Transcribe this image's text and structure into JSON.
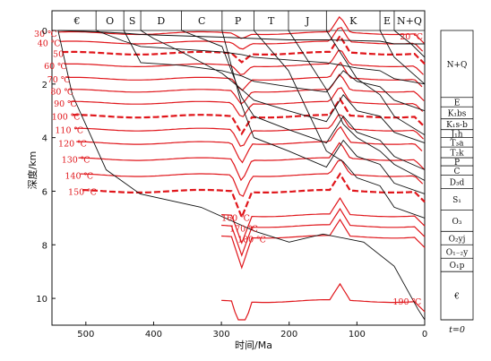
{
  "chart_data": {
    "type": "line",
    "title": "",
    "xlabel": "时间/Ma",
    "ylabel": "深度/km",
    "xlim": [
      550,
      0
    ],
    "ylim": [
      0,
      11
    ],
    "x_ticks": [
      500,
      400,
      300,
      200,
      100,
      0
    ],
    "y_ticks": [
      0,
      2,
      4,
      6,
      8,
      10
    ],
    "periods": [
      {
        "label": "€",
        "start": 541,
        "end": 485
      },
      {
        "label": "O",
        "start": 485,
        "end": 444
      },
      {
        "label": "S",
        "start": 444,
        "end": 419
      },
      {
        "label": "D",
        "start": 419,
        "end": 359
      },
      {
        "label": "C",
        "start": 359,
        "end": 299
      },
      {
        "label": "P",
        "start": 299,
        "end": 252
      },
      {
        "label": "T",
        "start": 252,
        "end": 201
      },
      {
        "label": "J",
        "start": 201,
        "end": 145
      },
      {
        "label": "K",
        "start": 145,
        "end": 66
      },
      {
        "label": "E",
        "start": 66,
        "end": 45
      },
      {
        "label": "N+Q",
        "start": 45,
        "end": 0
      }
    ],
    "isotherms": [
      {
        "label": "30 ℃",
        "temp": 30,
        "depth_at_start": 0.1
      },
      {
        "label": "40 ℃",
        "temp": 40,
        "depth_at_start": 0.45
      },
      {
        "label": "50",
        "temp": 50,
        "depth_at_start": 0.85
      },
      {
        "label": "60 ℃",
        "temp": 60,
        "depth_at_start": 1.3
      },
      {
        "label": "70 ℃",
        "temp": 70,
        "depth_at_start": 1.8
      },
      {
        "label": "80 ℃",
        "temp": 80,
        "depth_at_start": 2.25
      },
      {
        "label": "90 ℃",
        "temp": 90,
        "depth_at_start": 2.7
      },
      {
        "label": "100 ℃",
        "temp": 100,
        "depth_at_start": 3.2
      },
      {
        "label": "110 ℃",
        "temp": 110,
        "depth_at_start": 3.7
      },
      {
        "label": "120 ℃",
        "temp": 120,
        "depth_at_start": 4.2
      },
      {
        "label": "130 ℃",
        "temp": 130,
        "depth_at_start": 4.8
      },
      {
        "label": "140 ℃",
        "temp": 140,
        "depth_at_start": 5.4
      },
      {
        "label": "150 ℃",
        "temp": 150,
        "depth_at_start": 6.0
      },
      {
        "label": "160 ℃",
        "temp": 160,
        "depth_at_start": 6.9
      },
      {
        "label": "170 ℃",
        "temp": 170,
        "depth_at_start": 7.3
      },
      {
        "label": "180 ℃",
        "temp": 180,
        "depth_at_start": 7.7
      },
      {
        "label": "190 ℃",
        "temp": 190,
        "depth_at_start": 10.1
      },
      {
        "label": "20 ℃",
        "temp": 20,
        "depth_at_start": 0.2
      }
    ],
    "dashed_isotherms": [
      50,
      100,
      150
    ],
    "burial_curves": [
      [
        [
          541,
          0
        ],
        [
          485,
          0.05
        ],
        [
          444,
          0.1
        ],
        [
          419,
          0.15
        ],
        [
          359,
          0.2
        ],
        [
          299,
          0.25
        ],
        [
          252,
          0.3
        ],
        [
          201,
          0.35
        ],
        [
          145,
          0.35
        ],
        [
          66,
          0.4
        ],
        [
          45,
          0.5
        ],
        [
          0,
          0.5
        ]
      ],
      [
        [
          485,
          0
        ],
        [
          444,
          0.4
        ],
        [
          419,
          0.6
        ],
        [
          359,
          0.7
        ],
        [
          299,
          0.8
        ],
        [
          270,
          0.9
        ],
        [
          252,
          1.0
        ],
        [
          201,
          1.1
        ],
        [
          145,
          1.2
        ],
        [
          100,
          1.4
        ],
        [
          66,
          1.5
        ],
        [
          45,
          1.8
        ],
        [
          0,
          2.0
        ]
      ],
      [
        [
          444,
          0
        ],
        [
          419,
          1.2
        ],
        [
          359,
          1.3
        ],
        [
          299,
          1.5
        ],
        [
          270,
          1.7
        ],
        [
          252,
          1.9
        ],
        [
          201,
          2.1
        ],
        [
          145,
          2.3
        ],
        [
          120,
          1.5
        ],
        [
          100,
          1.9
        ],
        [
          66,
          2.1
        ],
        [
          45,
          2.6
        ],
        [
          0,
          3.0
        ]
      ],
      [
        [
          419,
          0
        ],
        [
          400,
          0.3
        ],
        [
          359,
          0.8
        ],
        [
          299,
          1.6
        ],
        [
          270,
          2.2
        ],
        [
          252,
          2.6
        ],
        [
          201,
          3.0
        ],
        [
          145,
          3.4
        ],
        [
          120,
          2.4
        ],
        [
          100,
          3.0
        ],
        [
          66,
          3.2
        ],
        [
          45,
          3.8
        ],
        [
          0,
          4.2
        ]
      ],
      [
        [
          359,
          0
        ],
        [
          299,
          0.6
        ],
        [
          270,
          2.5
        ],
        [
          252,
          3.2
        ],
        [
          201,
          3.7
        ],
        [
          145,
          4.2
        ],
        [
          120,
          3.2
        ],
        [
          100,
          3.8
        ],
        [
          66,
          4.1
        ],
        [
          45,
          4.7
        ],
        [
          0,
          5.2
        ]
      ],
      [
        [
          299,
          0
        ],
        [
          270,
          2.8
        ],
        [
          252,
          4.0
        ],
        [
          201,
          4.5
        ],
        [
          145,
          5.1
        ],
        [
          120,
          4.1
        ],
        [
          100,
          4.7
        ],
        [
          66,
          5.0
        ],
        [
          45,
          5.7
        ],
        [
          0,
          6.1
        ]
      ],
      [
        [
          252,
          0
        ],
        [
          201,
          1.5
        ],
        [
          145,
          4.5
        ],
        [
          120,
          4.9
        ],
        [
          100,
          5.5
        ],
        [
          66,
          5.8
        ],
        [
          45,
          6.6
        ],
        [
          0,
          7.0
        ]
      ],
      [
        [
          201,
          0
        ],
        [
          145,
          2.2
        ],
        [
          120,
          3.5
        ],
        [
          100,
          4.0
        ],
        [
          66,
          4.5
        ],
        [
          45,
          5.0
        ],
        [
          0,
          5.6
        ]
      ],
      [
        [
          145,
          0
        ],
        [
          120,
          1.0
        ],
        [
          100,
          1.8
        ],
        [
          66,
          2.4
        ],
        [
          45,
          3.2
        ],
        [
          0,
          3.9
        ]
      ],
      [
        [
          66,
          0
        ],
        [
          45,
          1.0
        ],
        [
          0,
          2.0
        ]
      ],
      [
        [
          45,
          0
        ],
        [
          20,
          0.5
        ],
        [
          0,
          1.0
        ]
      ]
    ],
    "stratigraphy_column": [
      {
        "label": "N+Q",
        "top": 0,
        "bottom": 2.5
      },
      {
        "label": "E",
        "top": 2.5,
        "bottom": 2.85
      },
      {
        "label": "K₁bs",
        "top": 2.85,
        "bottom": 3.3
      },
      {
        "label": "K₁s-b",
        "top": 3.3,
        "bottom": 3.7
      },
      {
        "label": "J₁h",
        "top": 3.7,
        "bottom": 4.0
      },
      {
        "label": "T₃a",
        "top": 4.0,
        "bottom": 4.35
      },
      {
        "label": "T₂k",
        "top": 4.35,
        "bottom": 4.75
      },
      {
        "label": "P",
        "top": 4.75,
        "bottom": 5.05
      },
      {
        "label": "C",
        "top": 5.05,
        "bottom": 5.4
      },
      {
        "label": "D₃d",
        "top": 5.4,
        "bottom": 5.9
      },
      {
        "label": "S₁",
        "top": 5.9,
        "bottom": 6.7
      },
      {
        "label": "O₃",
        "top": 6.7,
        "bottom": 7.5
      },
      {
        "label": "O₂yj",
        "top": 7.5,
        "bottom": 8.0
      },
      {
        "label": "O₁₋₂y",
        "top": 8.0,
        "bottom": 8.5
      },
      {
        "label": "O₁p",
        "top": 8.5,
        "bottom": 9.0
      },
      {
        "label": "€",
        "top": 9.0,
        "bottom": 10.8
      }
    ],
    "t0_label": "t=0",
    "grid": false,
    "legend": "none"
  }
}
